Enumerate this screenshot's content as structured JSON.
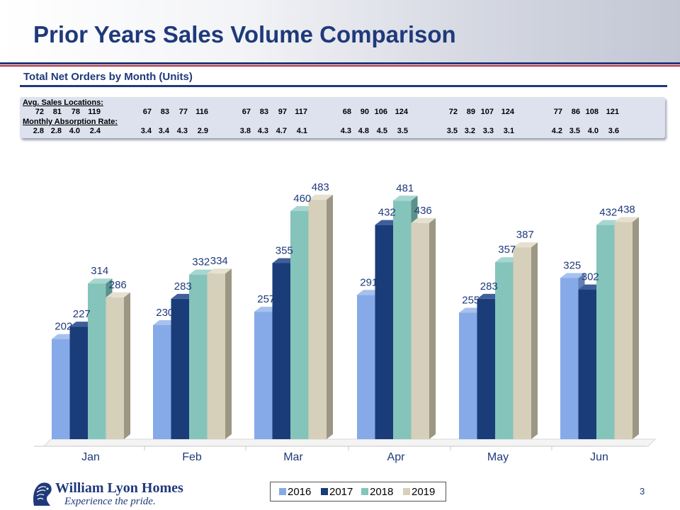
{
  "header": {
    "title": "Prior Years Sales Volume Comparison",
    "subtitle": "Total Net Orders by Month (Units)"
  },
  "table": {
    "locations_label": "Avg. Sales Locations:",
    "absorption_label": "Monthly Absorption Rate:",
    "locations": [
      [
        "72",
        "81",
        "78",
        "119"
      ],
      [
        "67",
        "83",
        "77",
        "116"
      ],
      [
        "67",
        "83",
        "97",
        "117"
      ],
      [
        "68",
        "90",
        "106",
        "124"
      ],
      [
        "72",
        "89",
        "107",
        "124"
      ],
      [
        "77",
        "86",
        "108",
        "121"
      ]
    ],
    "absorption": [
      [
        "2.8",
        "2.8",
        "4.0",
        "2.4"
      ],
      [
        "3.4",
        "3.4",
        "4.3",
        "2.9"
      ],
      [
        "3.8",
        "4.3",
        "4.7",
        "4.1"
      ],
      [
        "4.3",
        "4.8",
        "4.5",
        "3.5"
      ],
      [
        "3.5",
        "3.2",
        "3.3",
        "3.1"
      ],
      [
        "4.2",
        "3.5",
        "4.0",
        "3.6"
      ]
    ]
  },
  "chart_data": {
    "type": "bar",
    "title": "Total Net Orders by Month (Units)",
    "categories": [
      "Jan",
      "Feb",
      "Mar",
      "Apr",
      "May",
      "Jun"
    ],
    "series": [
      {
        "name": "2016",
        "values": [
          202,
          230,
          257,
          291,
          255,
          325
        ]
      },
      {
        "name": "2017",
        "values": [
          227,
          283,
          355,
          432,
          283,
          302
        ]
      },
      {
        "name": "2018",
        "values": [
          314,
          332,
          460,
          481,
          357,
          432
        ]
      },
      {
        "name": "2019",
        "values": [
          286,
          334,
          483,
          436,
          387,
          438
        ]
      }
    ],
    "ylim": [
      0,
      500
    ],
    "grid": false,
    "legend": "bottom-center",
    "style": "3d-column"
  },
  "colors": {
    "brand": "#1f3a7a",
    "accent_red": "#c2272d",
    "series": [
      {
        "front": "#86aae8",
        "side": "#5f7fb5",
        "top": "#a7c1ee"
      },
      {
        "front": "#1a3c78",
        "side": "#102752",
        "top": "#3f5f99"
      },
      {
        "front": "#84c4bb",
        "side": "#5a918a",
        "top": "#a6d6cf"
      },
      {
        "front": "#d6cfba",
        "side": "#9c9684",
        "top": "#e6e0cf"
      }
    ]
  },
  "footer": {
    "company": "William Lyon Homes",
    "tagline": "Experience the pride.",
    "page_number": "3"
  }
}
